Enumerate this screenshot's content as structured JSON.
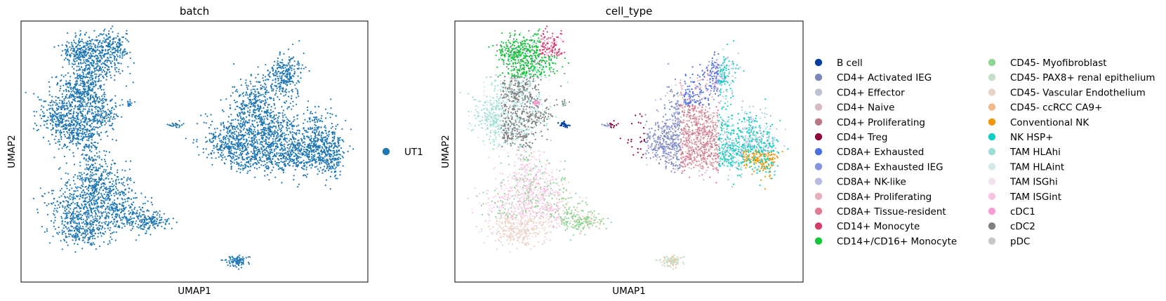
{
  "chart_data": [
    {
      "type": "scatter",
      "title": "batch",
      "xlabel": "UMAP1",
      "ylabel": "UMAP2",
      "grid": false,
      "legend_placement": "right",
      "series": [
        {
          "name": "UT1",
          "color": "#1f77b4"
        }
      ]
    },
    {
      "type": "scatter",
      "title": "cell_type",
      "xlabel": "UMAP1",
      "ylabel": "UMAP2",
      "grid": false,
      "legend_placement": "right",
      "series": [
        {
          "name": "B cell",
          "color": "#023fa5"
        },
        {
          "name": "CD4+ Activated IEG",
          "color": "#7d87b9"
        },
        {
          "name": "CD4+ Effector",
          "color": "#bec1d4"
        },
        {
          "name": "CD4+ Naive",
          "color": "#d6bcc0"
        },
        {
          "name": "CD4+ Proliferating",
          "color": "#bb7784"
        },
        {
          "name": "CD4+ Treg",
          "color": "#8e063b"
        },
        {
          "name": "CD8A+ Exhausted",
          "color": "#4a6fe3"
        },
        {
          "name": "CD8A+ Exhausted IEG",
          "color": "#8595e1"
        },
        {
          "name": "CD8A+ NK-like",
          "color": "#b5bbe3"
        },
        {
          "name": "CD8A+ Proliferating",
          "color": "#e6afb9"
        },
        {
          "name": "CD8A+ Tissue-resident",
          "color": "#e07b91"
        },
        {
          "name": "CD14+ Monocyte",
          "color": "#d33f6a"
        },
        {
          "name": "CD14+/CD16+ Monocyte",
          "color": "#11c638"
        },
        {
          "name": "CD45- Myofibroblast",
          "color": "#8dd593"
        },
        {
          "name": "CD45- PAX8+ renal epithelium",
          "color": "#c6dec7"
        },
        {
          "name": "CD45- Vascular Endothelium",
          "color": "#ead3c6"
        },
        {
          "name": "CD45- ccRCC CA9+",
          "color": "#f0b98d"
        },
        {
          "name": "Conventional NK",
          "color": "#ef9708"
        },
        {
          "name": "NK HSP+",
          "color": "#0fcfc0"
        },
        {
          "name": "TAM HLAhi",
          "color": "#9cded6"
        },
        {
          "name": "TAM HLAint",
          "color": "#d5eae7"
        },
        {
          "name": "TAM ISGhi",
          "color": "#f3e1eb"
        },
        {
          "name": "TAM ISGint",
          "color": "#f6c4e1"
        },
        {
          "name": "cDC1",
          "color": "#f79cd4"
        },
        {
          "name": "cDC2",
          "color": "#7f7f7f"
        },
        {
          "name": "pDC",
          "color": "#c7c7c7"
        }
      ]
    }
  ]
}
